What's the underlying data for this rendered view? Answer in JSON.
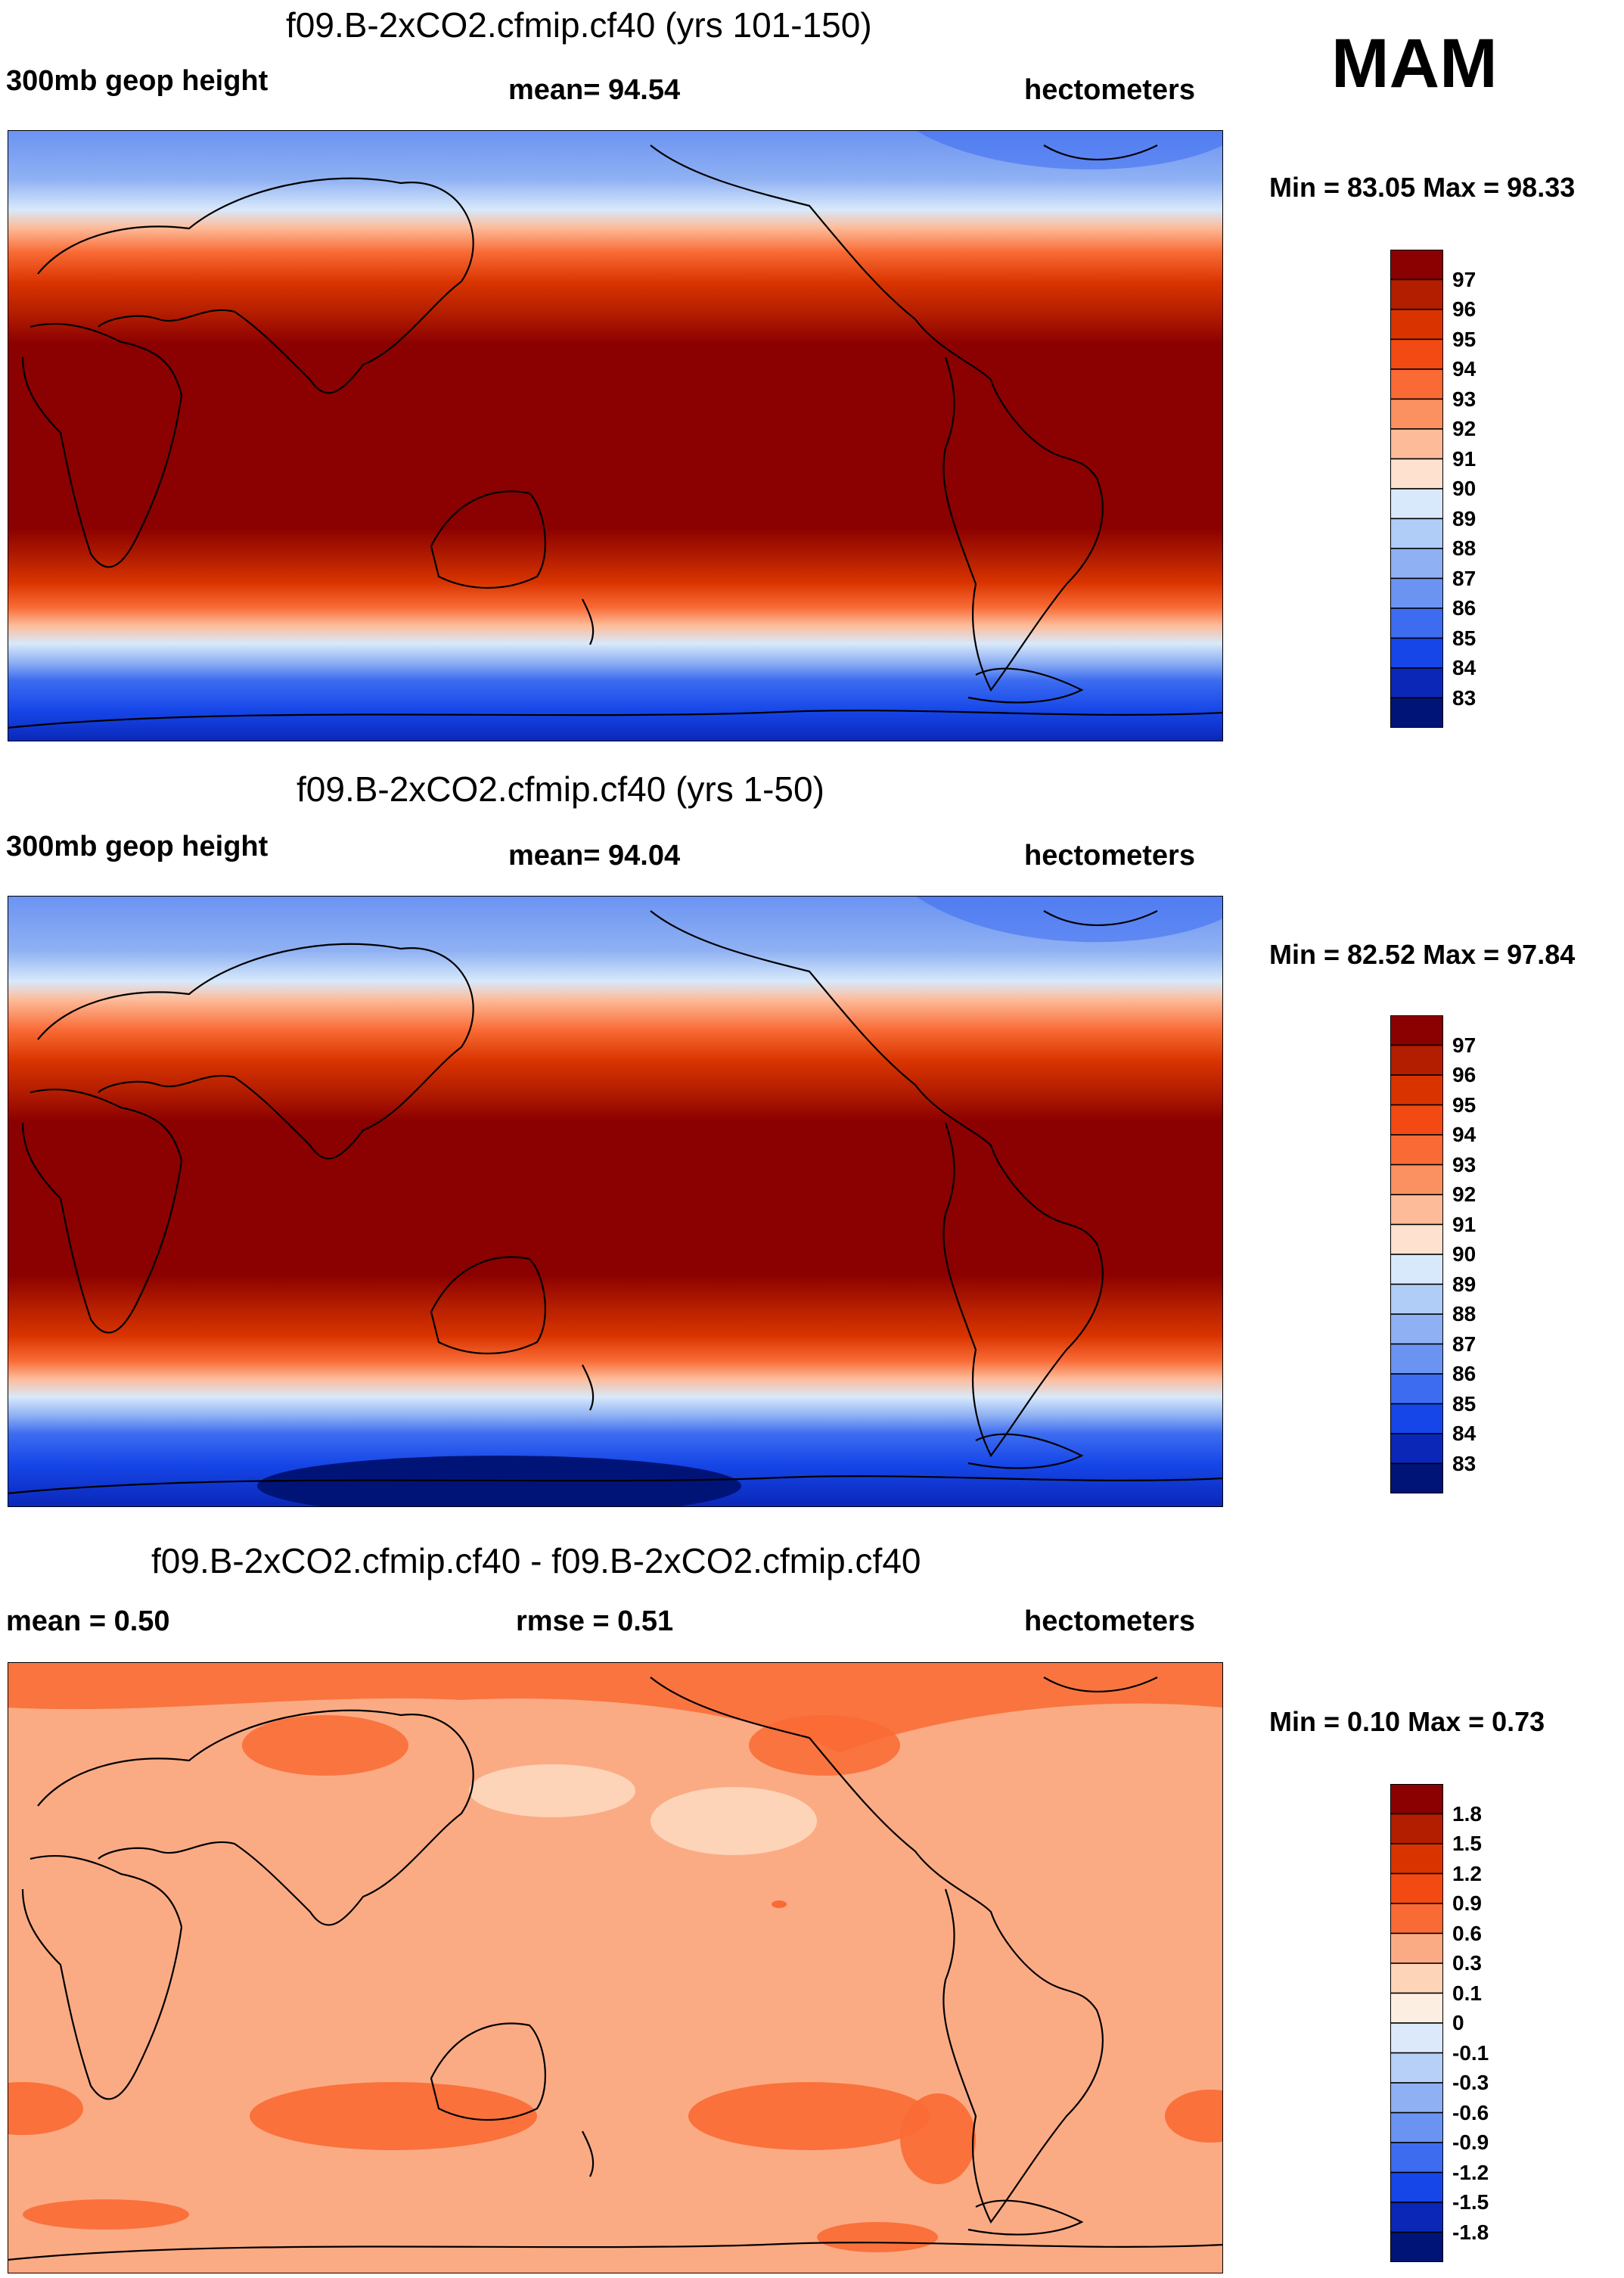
{
  "season": "MAM",
  "panels": [
    {
      "title": "f09.B-2xCO2.cfmip.cf40 (yrs 101-150)",
      "left_label": "300mb geop height",
      "center_label": "mean=  94.54",
      "units": "hectometers",
      "minmax": "Min =  83.05 Max =  98.33",
      "colorbar": {
        "labels": [
          "97",
          "96",
          "95",
          "94",
          "93",
          "92",
          "91",
          "90",
          "89",
          "88",
          "87",
          "86",
          "85",
          "84",
          "83"
        ],
        "colors": [
          "#8b0000",
          "#b31d00",
          "#d93400",
          "#f24a12",
          "#f96a34",
          "#fb9160",
          "#fdbb99",
          "#fee1cf",
          "#d8e9fb",
          "#b0cdf7",
          "#8fb1f3",
          "#6b93f2",
          "#3d6cf0",
          "#1646e8",
          "#0a27b8",
          "#001478"
        ]
      }
    },
    {
      "title": "f09.B-2xCO2.cfmip.cf40 (yrs 1-50)",
      "left_label": "300mb geop height",
      "center_label": "mean=  94.04",
      "units": "hectometers",
      "minmax": "Min =  82.52 Max =  97.84",
      "colorbar": {
        "labels": [
          "97",
          "96",
          "95",
          "94",
          "93",
          "92",
          "91",
          "90",
          "89",
          "88",
          "87",
          "86",
          "85",
          "84",
          "83"
        ],
        "colors": [
          "#8b0000",
          "#b31d00",
          "#d93400",
          "#f24a12",
          "#f96a34",
          "#fb9160",
          "#fdbb99",
          "#fee1cf",
          "#d8e9fb",
          "#b0cdf7",
          "#8fb1f3",
          "#6b93f2",
          "#3d6cf0",
          "#1646e8",
          "#0a27b8",
          "#001478"
        ]
      }
    },
    {
      "title": "f09.B-2xCO2.cfmip.cf40 - f09.B-2xCO2.cfmip.cf40",
      "left_label": "mean =   0.50",
      "center_label": "rmse =   0.51",
      "units": "hectometers",
      "minmax": "Min =   0.10 Max =   0.73",
      "colorbar": {
        "labels": [
          "1.8",
          "1.5",
          "1.2",
          "0.9",
          "0.6",
          "0.3",
          "0.1",
          "0",
          "-0.1",
          "-0.3",
          "-0.6",
          "-0.9",
          "-1.2",
          "-1.5",
          "-1.8"
        ],
        "colors": [
          "#8b0000",
          "#b31d00",
          "#d93400",
          "#f24a12",
          "#f96a34",
          "#fbab84",
          "#fdd4b8",
          "#fdeee2",
          "#dbe9fb",
          "#b7d0f8",
          "#8fb1f3",
          "#6b93f2",
          "#3d6cf0",
          "#1646e8",
          "#0a27b8",
          "#001478"
        ]
      }
    }
  ],
  "chart_data": [
    {
      "type": "heatmap",
      "title": "f09.B-2xCO2.cfmip.cf40 (yrs 101-150)",
      "variable": "300mb geop height",
      "units": "hectometers",
      "mean": 94.54,
      "min": 83.05,
      "max": 98.33,
      "levels": [
        83,
        84,
        85,
        86,
        87,
        88,
        89,
        90,
        91,
        92,
        93,
        94,
        95,
        96,
        97
      ]
    },
    {
      "type": "heatmap",
      "title": "f09.B-2xCO2.cfmip.cf40 (yrs 1-50)",
      "variable": "300mb geop height",
      "units": "hectometers",
      "mean": 94.04,
      "min": 82.52,
      "max": 97.84,
      "levels": [
        83,
        84,
        85,
        86,
        87,
        88,
        89,
        90,
        91,
        92,
        93,
        94,
        95,
        96,
        97
      ]
    },
    {
      "type": "heatmap",
      "title": "f09.B-2xCO2.cfmip.cf40 - f09.B-2xCO2.cfmip.cf40",
      "units": "hectometers",
      "mean": 0.5,
      "rmse": 0.51,
      "min": 0.1,
      "max": 0.73,
      "levels": [
        -1.8,
        -1.5,
        -1.2,
        -0.9,
        -0.6,
        -0.3,
        -0.1,
        0,
        0.1,
        0.3,
        0.6,
        0.9,
        1.2,
        1.5,
        1.8
      ]
    }
  ]
}
